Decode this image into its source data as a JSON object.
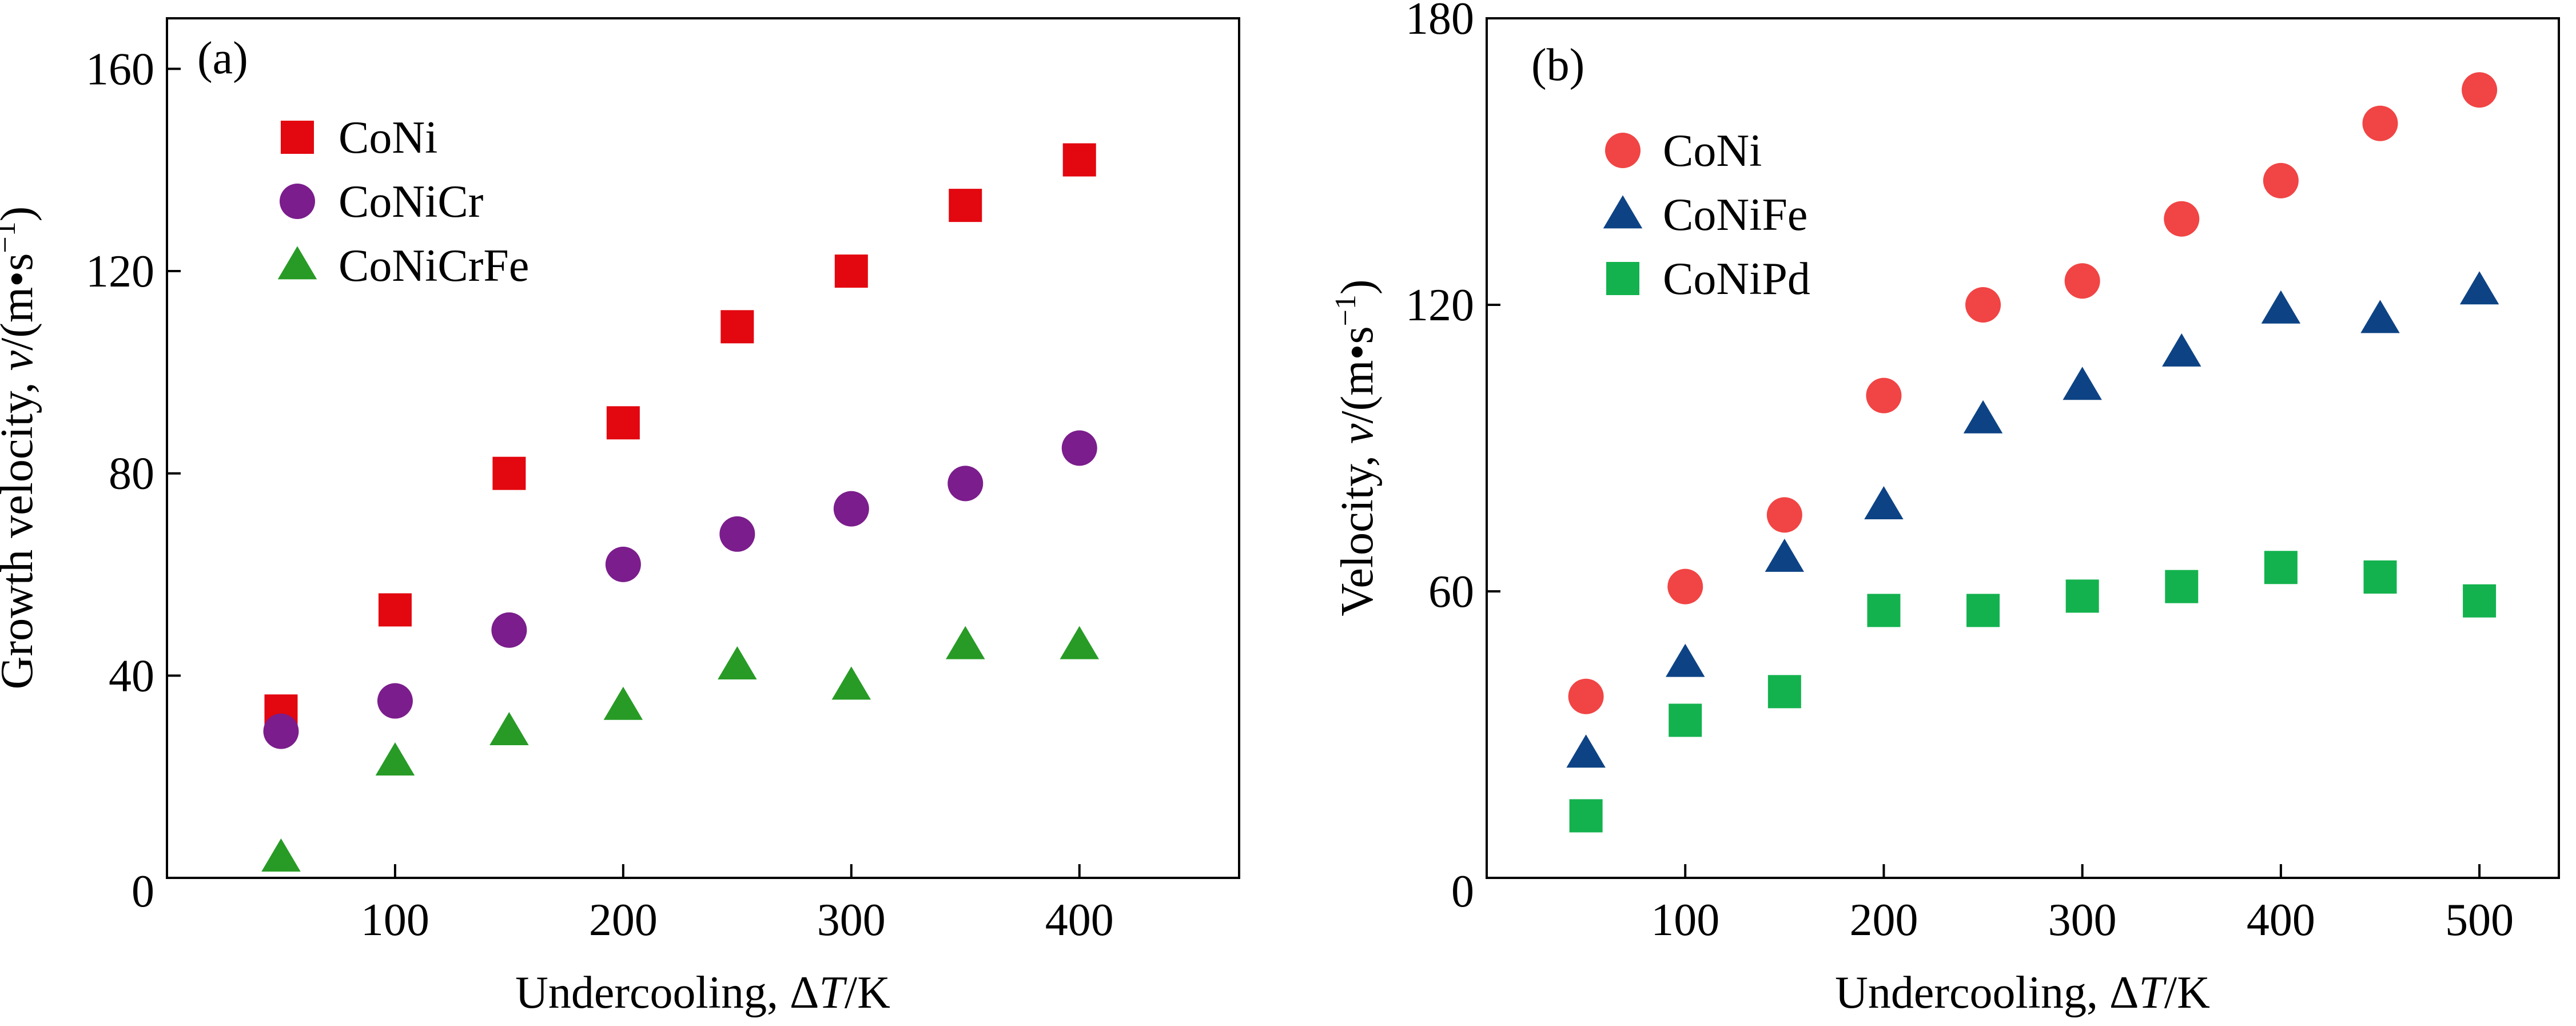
{
  "chart_data": [
    {
      "type": "scatter",
      "panel_label": "(a)",
      "title": "",
      "xlabel": {
        "prefix": "Undercooling, ",
        "delta": "Δ",
        "var": "T",
        "suffix": "/K"
      },
      "ylabel": {
        "prefix": "Growth velocity, ",
        "var": "v",
        "mid": "/(m•s",
        "sup": "−1",
        "suffix": ")"
      },
      "xlim": [
        0,
        470
      ],
      "ylim": [
        0,
        170
      ],
      "xticks": [
        100,
        200,
        300,
        400
      ],
      "yticks": [
        40,
        80,
        120,
        160
      ],
      "origin_label": "0",
      "legend_position": "top-left",
      "series": [
        {
          "name": "CoNi",
          "marker": "square",
          "color": "#e3070f",
          "x": [
            50,
            100,
            150,
            200,
            250,
            300,
            350,
            400
          ],
          "y": [
            33,
            53,
            80,
            90,
            109,
            120,
            133,
            142
          ]
        },
        {
          "name": "CoNiCr",
          "marker": "circle",
          "color": "#7b1d8c",
          "x": [
            50,
            100,
            150,
            200,
            250,
            300,
            350,
            400
          ],
          "y": [
            29,
            35,
            49,
            62,
            68,
            73,
            78,
            85
          ]
        },
        {
          "name": "CoNiCrFe",
          "marker": "triangle",
          "color": "#279b25",
          "x": [
            50,
            100,
            150,
            200,
            250,
            300,
            350,
            400
          ],
          "y": [
            4,
            23,
            29,
            34,
            42,
            38,
            46,
            46
          ]
        }
      ]
    },
    {
      "type": "scatter",
      "panel_label": "(b)",
      "title": "",
      "xlabel": {
        "prefix": "Undercooling, ",
        "delta": "Δ",
        "var": "T",
        "suffix": "/K"
      },
      "ylabel": {
        "prefix": "Velocity, ",
        "var": "v",
        "mid": "/(m•s",
        "sup": "−1",
        "suffix": ")"
      },
      "xlim": [
        0,
        540
      ],
      "ylim": [
        0,
        180
      ],
      "xticks": [
        100,
        200,
        300,
        400,
        500
      ],
      "yticks": [
        60,
        120,
        180
      ],
      "origin_label": "0",
      "legend_position": "top-left",
      "series": [
        {
          "name": "CoNi",
          "marker": "circle",
          "color": "#f14444",
          "x": [
            50,
            100,
            150,
            200,
            250,
            300,
            350,
            400,
            450,
            500
          ],
          "y": [
            38,
            61,
            76,
            101,
            120,
            125,
            138,
            146,
            158,
            165
          ]
        },
        {
          "name": "CoNiFe",
          "marker": "triangle",
          "color": "#0d4385",
          "x": [
            50,
            100,
            150,
            200,
            250,
            300,
            350,
            400,
            450,
            500
          ],
          "y": [
            26,
            45,
            67,
            78,
            96,
            103,
            110,
            119,
            117,
            123
          ]
        },
        {
          "name": "CoNiPd",
          "marker": "square",
          "color": "#13b24e",
          "x": [
            50,
            100,
            150,
            200,
            250,
            300,
            350,
            400,
            450,
            500
          ],
          "y": [
            13,
            33,
            39,
            56,
            56,
            59,
            61,
            65,
            63,
            58
          ]
        }
      ]
    }
  ]
}
